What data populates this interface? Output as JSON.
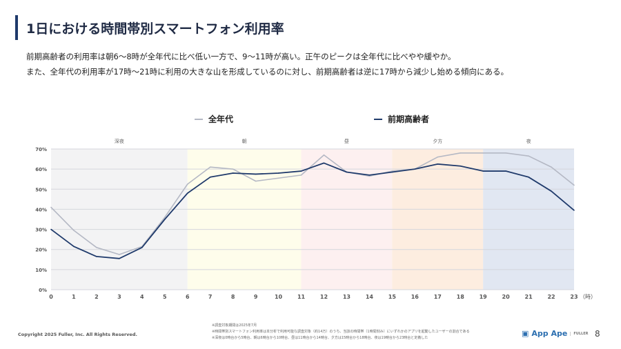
{
  "header": {
    "title": "1日における時間帯別スマートフォン利用率",
    "description": [
      "前期高齢者の利用率は朝6〜8時が全年代に比べ低い一方で、9〜11時が高い。正午のピークは全年代に比べやや緩やか。",
      "また、全年代の利用率が17時〜21時に利用の大きな山を形成しているのに対し、前期高齢者は逆に17時から減少し始める傾向にある。"
    ]
  },
  "chart_data": {
    "type": "line",
    "title": "",
    "xlabel": "",
    "x_unit_label": "（時）",
    "ylabel": "",
    "x": [
      0,
      1,
      2,
      3,
      4,
      5,
      6,
      7,
      8,
      9,
      10,
      11,
      12,
      13,
      14,
      15,
      16,
      17,
      18,
      19,
      20,
      21,
      22,
      23
    ],
    "ylim": [
      0,
      70
    ],
    "yticks": [
      "0%",
      "10%",
      "20%",
      "30%",
      "40%",
      "50%",
      "60%",
      "70%"
    ],
    "grid": true,
    "legend_position": "top",
    "series": [
      {
        "name": "全年代",
        "color": "#b4b8c4",
        "values": [
          41,
          29.5,
          21,
          17.5,
          21.5,
          36,
          52.5,
          61,
          60,
          54,
          55.5,
          57,
          67,
          58.5,
          56.5,
          59,
          60,
          66,
          68,
          68,
          68,
          66.5,
          61,
          52
        ]
      },
      {
        "name": "前期高齢者",
        "color": "#1f3a6b",
        "values": [
          30,
          21.5,
          16.5,
          15.5,
          21,
          35,
          48,
          56,
          58,
          57.5,
          58,
          59,
          63,
          58.5,
          57,
          58.5,
          60,
          62.5,
          61.5,
          59,
          59,
          56,
          49,
          39.5
        ]
      }
    ],
    "bands": [
      {
        "label": "深夜",
        "from": 0,
        "to": 6,
        "color": "#f3f3f4"
      },
      {
        "label": "朝",
        "from": 6,
        "to": 11,
        "color": "#fefdeb"
      },
      {
        "label": "昼",
        "from": 11,
        "to": 15,
        "color": "#fdf0f0"
      },
      {
        "label": "夕方",
        "from": 15,
        "to": 19,
        "color": "#fdede0"
      },
      {
        "label": "夜",
        "from": 19,
        "to": 23,
        "color": "#e1e7f2"
      }
    ]
  },
  "footer": {
    "copyright": "Copyright 2025 Fuller, Inc. All Rights Reserved.",
    "notes": [
      "※調査対象期間は2025年7月",
      "※時間帯別スマートフォン利用率は本分析で利用可能な調査対象（約14万）のうち、当該の時間帯（1時間刻み）にいずれかのアプリを起動したユーザーの割合である",
      "※深夜は0時台から5時台、朝は6時台から10時台、昼は11時台から14時台、夕方は15時台から18時台、夜は19時台から23時台と定義した"
    ],
    "brand": "App Ape",
    "brand_sub": "FULLER",
    "page_number": "8"
  }
}
